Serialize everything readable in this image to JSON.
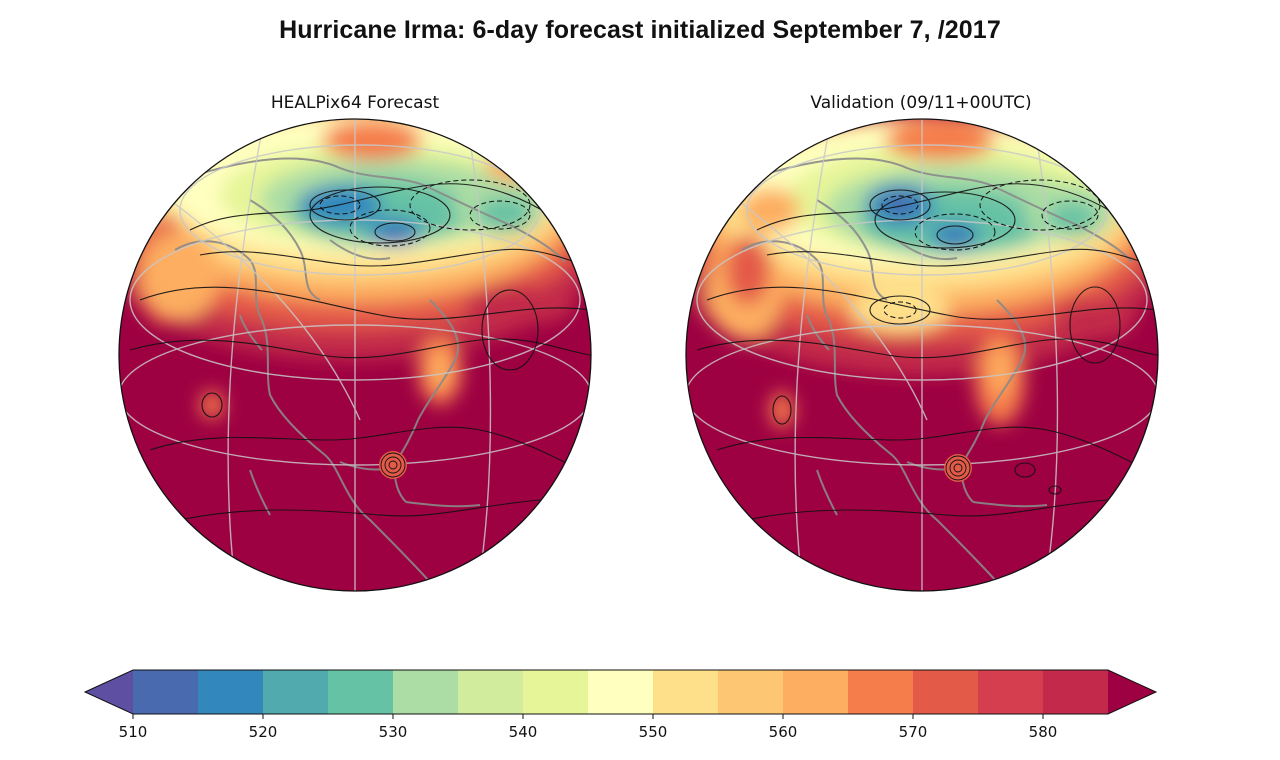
{
  "title": "Hurricane Irma: 6-day forecast initialized September 7, /2017",
  "panels": [
    {
      "title": "HEALPix64 Forecast"
    },
    {
      "title": "Validation (09/11+00UTC)"
    }
  ],
  "chart_data": {
    "type": "heatmap",
    "projection": "orthographic globe centered on North America",
    "field": "filled contours with black contour lines (dashed for lower values), grey coastlines and graticule",
    "colorbar": {
      "orientation": "horizontal",
      "extend": "both",
      "min": 510,
      "max": 585,
      "step": 5,
      "tick_values": [
        510,
        520,
        530,
        540,
        550,
        560,
        570,
        580
      ],
      "tick_labels": [
        "510",
        "520",
        "530",
        "540",
        "550",
        "560",
        "570",
        "580"
      ],
      "colors": [
        "#5e4fa2",
        "#4a6ab0",
        "#3288bd",
        "#50aaae",
        "#66c2a5",
        "#abdda4",
        "#d1ec9c",
        "#e6f598",
        "#ffffbf",
        "#fee08b",
        "#fdc672",
        "#fdae61",
        "#f57d4b",
        "#e45a49",
        "#d53e4f",
        "#c2294a",
        "#9e0142"
      ]
    },
    "panels": [
      {
        "name": "HEALPix64 Forecast",
        "hurricane_marker": "over Florida / Bahamas",
        "low_centers": [
          "northern Canada",
          "Arctic",
          "Siberia"
        ]
      },
      {
        "name": "Validation (09/11+00UTC)",
        "hurricane_marker": "over Florida / Bahamas",
        "low_centers": [
          "northern Canada",
          "Arctic",
          "Siberia"
        ]
      }
    ]
  }
}
